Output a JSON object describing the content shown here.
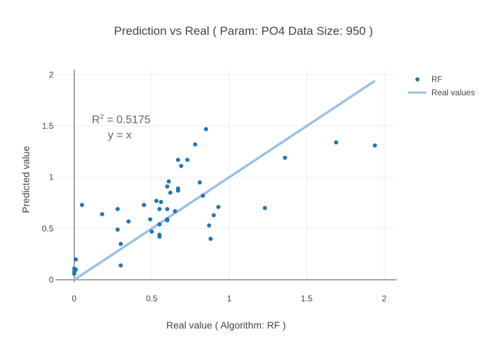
{
  "chart_data": {
    "type": "scatter",
    "title": "Prediction vs Real  ( Param: PO4 Data Size: 950 )",
    "xlabel": "Real value ( Algorithm: RF )",
    "ylabel": "Predicted value",
    "xlim": [
      -0.12,
      2.08
    ],
    "ylim": [
      -0.02,
      2.05
    ],
    "xticks": [
      0,
      0.5,
      1,
      1.5,
      2
    ],
    "xtick_labels": [
      "0",
      "0.5",
      "1",
      "1.5",
      "2"
    ],
    "yticks": [
      0,
      0.5,
      1,
      1.5,
      2
    ],
    "ytick_labels": [
      "0",
      "0.5",
      "1",
      "1.5",
      "2"
    ],
    "grid": true,
    "legend_position": "top-right",
    "annotation": {
      "r2_prefix": "R",
      "r2_sup": "2",
      "r2_value": " = 0.5175",
      "equation": "y  = x"
    },
    "series": [
      {
        "name": "RF",
        "mode": "markers",
        "color": "#1f77b4",
        "x": [
          0.01,
          0.0,
          0.01,
          0.0,
          0.0,
          0.05,
          0.18,
          0.28,
          0.28,
          0.3,
          0.3,
          0.35,
          0.45,
          0.49,
          0.5,
          0.53,
          0.55,
          0.55,
          0.55,
          0.55,
          0.56,
          0.6,
          0.6,
          0.6,
          0.6,
          0.61,
          0.62,
          0.65,
          0.67,
          0.67,
          0.67,
          0.69,
          0.73,
          0.78,
          0.81,
          0.83,
          0.85,
          0.87,
          0.88,
          0.9,
          0.93,
          1.23,
          1.36,
          1.69,
          1.94
        ],
        "y": [
          0.2,
          0.11,
          0.1,
          0.08,
          0.06,
          0.73,
          0.64,
          0.69,
          0.49,
          0.35,
          0.14,
          0.57,
          0.73,
          0.59,
          0.47,
          0.77,
          0.69,
          0.54,
          0.44,
          0.42,
          0.76,
          0.91,
          0.69,
          0.59,
          0.58,
          0.96,
          0.85,
          0.67,
          0.89,
          0.87,
          1.17,
          1.11,
          1.17,
          1.32,
          0.95,
          0.82,
          1.47,
          0.53,
          0.4,
          0.63,
          0.71,
          0.7,
          1.19,
          1.34,
          1.31
        ]
      },
      {
        "name": "Real values",
        "mode": "lines",
        "color": "#9ec0e2",
        "x": [
          0,
          1.94
        ],
        "y": [
          0,
          1.94
        ]
      }
    ]
  }
}
